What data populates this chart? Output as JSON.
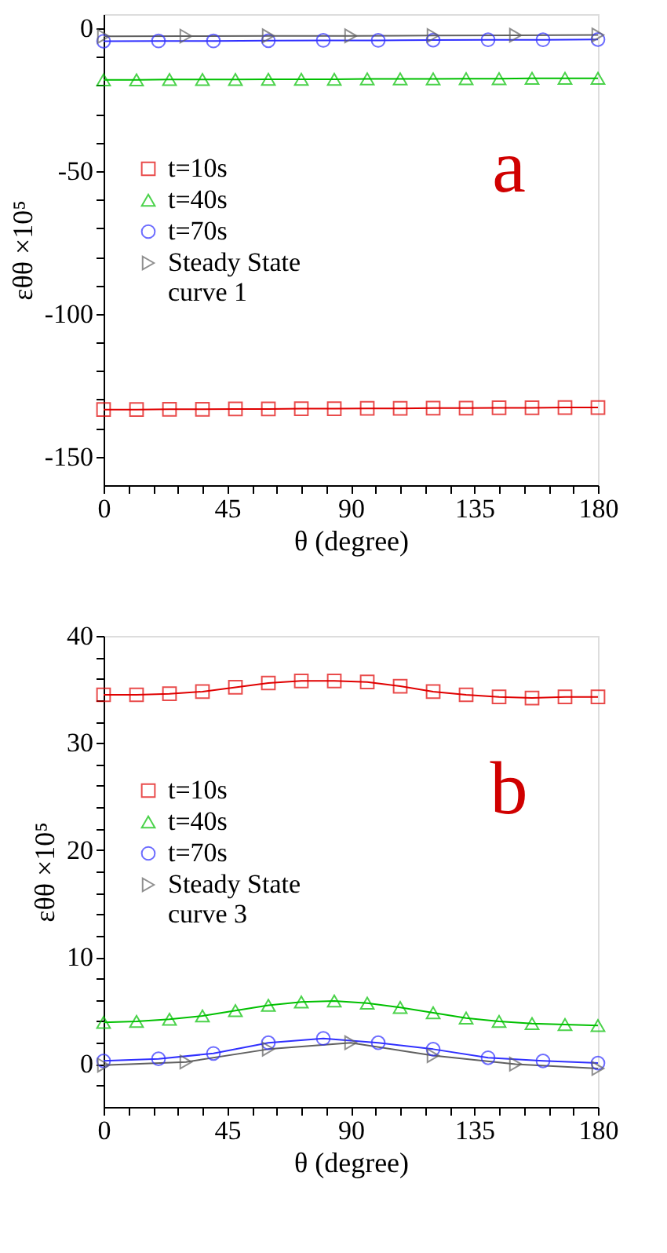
{
  "chart_data": [
    {
      "type": "line",
      "xlabel": "θ (degree)",
      "ylabel": "εθθ ×10⁵",
      "annotations": [
        "a"
      ],
      "legend": "left",
      "grid": false,
      "xlim": [
        0,
        180
      ],
      "ylim": [
        -160,
        5
      ],
      "xticks": [
        0,
        {
          "value": 9,
          "label": null
        },
        {
          "value": 18,
          "label": null
        },
        {
          "value": 27,
          "label": null
        },
        {
          "value": 36,
          "label": null
        },
        45,
        {
          "value": 54,
          "label": null
        },
        {
          "value": 63,
          "label": null
        },
        {
          "value": 72,
          "label": null
        },
        {
          "value": 81,
          "label": null
        },
        90,
        {
          "value": 99,
          "label": null
        },
        {
          "value": 108,
          "label": null
        },
        {
          "value": 117,
          "label": null
        },
        {
          "value": 126,
          "label": null
        },
        135,
        {
          "value": 144,
          "label": null
        },
        {
          "value": 153,
          "label": null
        },
        {
          "value": 162,
          "label": null
        },
        {
          "value": 171,
          "label": null
        },
        180
      ],
      "yticks": [
        0,
        {
          "value": -10,
          "label": null
        },
        {
          "value": -20,
          "label": null
        },
        {
          "value": -30,
          "label": null
        },
        {
          "value": -40,
          "label": null
        },
        -50,
        {
          "value": -60,
          "label": null
        },
        {
          "value": -70,
          "label": null
        },
        {
          "value": -80,
          "label": null
        },
        {
          "value": -90,
          "label": null
        },
        -100,
        {
          "value": -110,
          "label": null
        },
        {
          "value": -120,
          "label": null
        },
        {
          "value": -130,
          "label": null
        },
        {
          "value": -140,
          "label": null
        },
        -150
      ],
      "series": [
        {
          "name": "t=10s",
          "color": "#e00000",
          "marker": "square",
          "x": [
            0,
            12,
            24,
            36,
            48,
            60,
            72,
            84,
            96,
            108,
            120,
            132,
            144,
            156,
            168,
            180
          ],
          "values": [
            -133.5,
            -133.5,
            -133.4,
            -133.4,
            -133.3,
            -133.3,
            -133.2,
            -133.2,
            -133.1,
            -133.1,
            -133,
            -133,
            -132.9,
            -132.9,
            -132.8,
            -132.8
          ]
        },
        {
          "name": "t=40s",
          "color": "#00c000",
          "marker": "triangle",
          "x": [
            0,
            12,
            24,
            36,
            48,
            60,
            72,
            84,
            96,
            108,
            120,
            132,
            144,
            156,
            168,
            180
          ],
          "values": [
            -18,
            -18,
            -17.9,
            -17.9,
            -17.9,
            -17.8,
            -17.8,
            -17.8,
            -17.7,
            -17.7,
            -17.7,
            -17.6,
            -17.6,
            -17.5,
            -17.5,
            -17.5
          ]
        },
        {
          "name": "t=70s",
          "color": "#3030ff",
          "marker": "circle",
          "x": [
            0,
            20,
            40,
            60,
            80,
            100,
            120,
            140,
            160,
            180
          ],
          "values": [
            -4.5,
            -4.4,
            -4.4,
            -4.3,
            -4.2,
            -4.2,
            -4.1,
            -4,
            -4,
            -3.9
          ]
        },
        {
          "name": "Steady State\ncurve 1",
          "color": "#606060",
          "marker": "triangle-right",
          "x": [
            0,
            30,
            60,
            90,
            120,
            150,
            180
          ],
          "values": [
            -2.8,
            -2.7,
            -2.6,
            -2.6,
            -2.5,
            -2.4,
            -2.3
          ]
        }
      ]
    },
    {
      "type": "line",
      "xlabel": "θ (degree)",
      "ylabel": "εθθ ×10⁵",
      "annotations": [
        "b"
      ],
      "legend": "left",
      "grid": false,
      "xlim": [
        0,
        180
      ],
      "ylim": [
        -4,
        40
      ],
      "xticks": [
        0,
        {
          "value": 9,
          "label": null
        },
        {
          "value": 18,
          "label": null
        },
        {
          "value": 27,
          "label": null
        },
        {
          "value": 36,
          "label": null
        },
        45,
        {
          "value": 54,
          "label": null
        },
        {
          "value": 63,
          "label": null
        },
        {
          "value": 72,
          "label": null
        },
        {
          "value": 81,
          "label": null
        },
        90,
        {
          "value": 99,
          "label": null
        },
        {
          "value": 108,
          "label": null
        },
        {
          "value": 117,
          "label": null
        },
        {
          "value": 126,
          "label": null
        },
        135,
        {
          "value": 144,
          "label": null
        },
        {
          "value": 153,
          "label": null
        },
        {
          "value": 162,
          "label": null
        },
        {
          "value": 171,
          "label": null
        },
        180
      ],
      "yticks": [
        {
          "value": -2,
          "label": null
        },
        0,
        {
          "value": 2,
          "label": null
        },
        {
          "value": 4,
          "label": null
        },
        {
          "value": 6,
          "label": null
        },
        {
          "value": 8,
          "label": null
        },
        10,
        {
          "value": 12,
          "label": null
        },
        {
          "value": 14,
          "label": null
        },
        {
          "value": 16,
          "label": null
        },
        {
          "value": 18,
          "label": null
        },
        20,
        {
          "value": 22,
          "label": null
        },
        {
          "value": 24,
          "label": null
        },
        {
          "value": 26,
          "label": null
        },
        {
          "value": 28,
          "label": null
        },
        30,
        {
          "value": 32,
          "label": null
        },
        {
          "value": 34,
          "label": null
        },
        {
          "value": 36,
          "label": null
        },
        {
          "value": 38,
          "label": null
        },
        40
      ],
      "series": [
        {
          "name": "t=10s",
          "color": "#e00000",
          "marker": "square",
          "x": [
            0,
            12,
            24,
            36,
            48,
            60,
            72,
            84,
            96,
            108,
            120,
            132,
            144,
            156,
            168,
            180
          ],
          "values": [
            34.5,
            34.5,
            34.6,
            34.8,
            35.2,
            35.6,
            35.8,
            35.8,
            35.7,
            35.3,
            34.8,
            34.5,
            34.3,
            34.2,
            34.3,
            34.3
          ]
        },
        {
          "name": "t=40s",
          "color": "#00c000",
          "marker": "triangle",
          "x": [
            0,
            12,
            24,
            36,
            48,
            60,
            72,
            84,
            96,
            108,
            120,
            132,
            144,
            156,
            168,
            180
          ],
          "values": [
            3.9,
            4.0,
            4.2,
            4.5,
            5.0,
            5.5,
            5.8,
            5.9,
            5.7,
            5.3,
            4.8,
            4.3,
            4.0,
            3.8,
            3.7,
            3.6
          ]
        },
        {
          "name": "t=70s",
          "color": "#3030ff",
          "marker": "circle",
          "x": [
            0,
            20,
            40,
            60,
            80,
            100,
            120,
            140,
            160,
            180
          ],
          "values": [
            0.3,
            0.5,
            1.0,
            2.0,
            2.4,
            2.0,
            1.4,
            0.6,
            0.3,
            0.1
          ]
        },
        {
          "name": "Steady State\ncurve 3",
          "color": "#606060",
          "marker": "triangle-right",
          "x": [
            0,
            30,
            60,
            90,
            120,
            150,
            180
          ],
          "values": [
            -0.1,
            0.2,
            1.4,
            2.0,
            0.8,
            0.0,
            -0.4
          ]
        }
      ]
    }
  ]
}
